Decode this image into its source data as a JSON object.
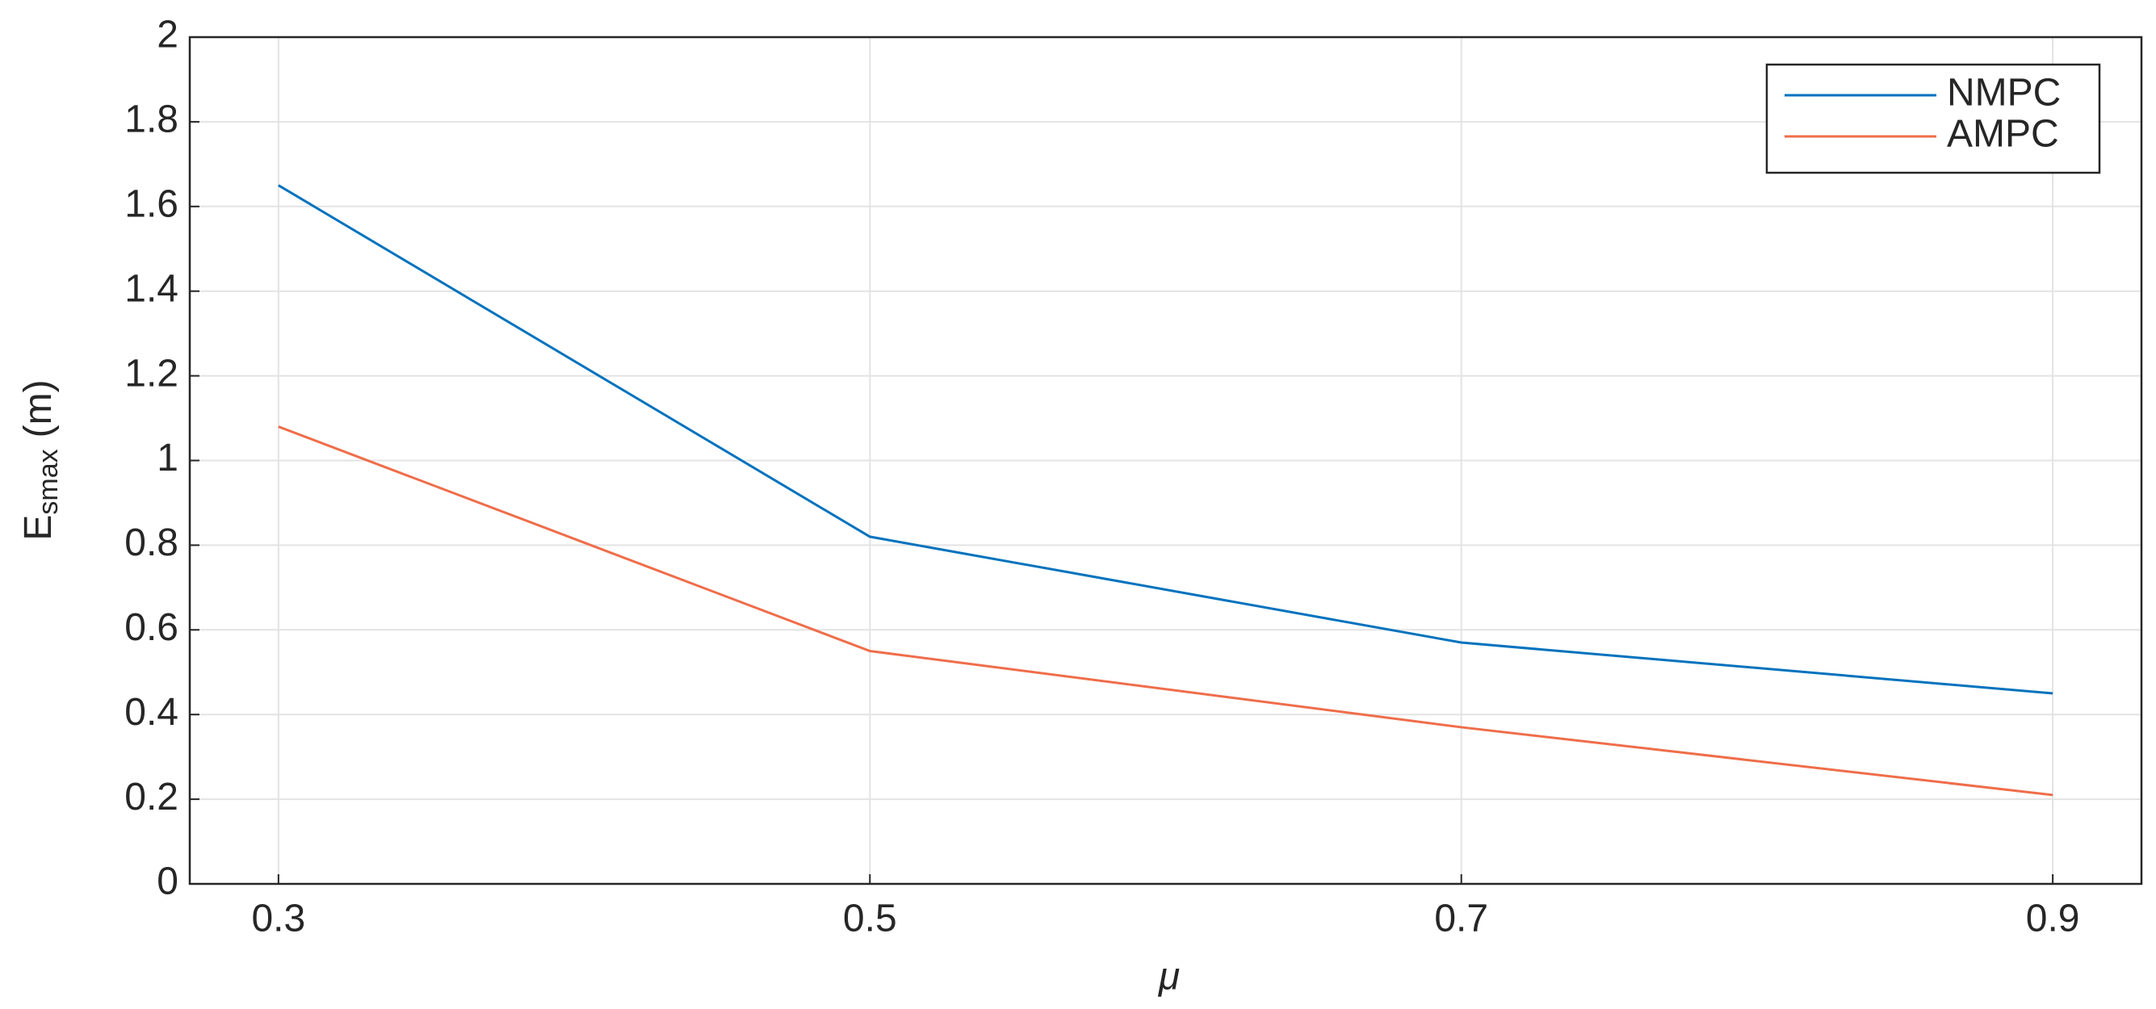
{
  "chart_data": {
    "type": "line",
    "xlabel": "μ",
    "ylabel": {
      "text": "E",
      "subscript": "smax",
      "unit": "(m)"
    },
    "x": [
      0.3,
      0.5,
      0.7,
      0.9
    ],
    "series": [
      {
        "name": "NMPC",
        "color": "#0072bd",
        "values": [
          1.65,
          0.82,
          0.57,
          0.45
        ]
      },
      {
        "name": "AMPC",
        "color": "#ef6d4a",
        "values": [
          1.08,
          0.55,
          0.37,
          0.21
        ]
      }
    ],
    "xlim": [
      0.27,
      0.93
    ],
    "xticks": [
      0.3,
      0.5,
      0.7,
      0.9
    ],
    "ylim": [
      0,
      2
    ],
    "yticks": [
      0,
      0.2,
      0.4,
      0.6,
      0.8,
      1,
      1.2,
      1.4,
      1.6,
      1.8,
      2
    ],
    "grid": true,
    "legend": "upper right"
  }
}
